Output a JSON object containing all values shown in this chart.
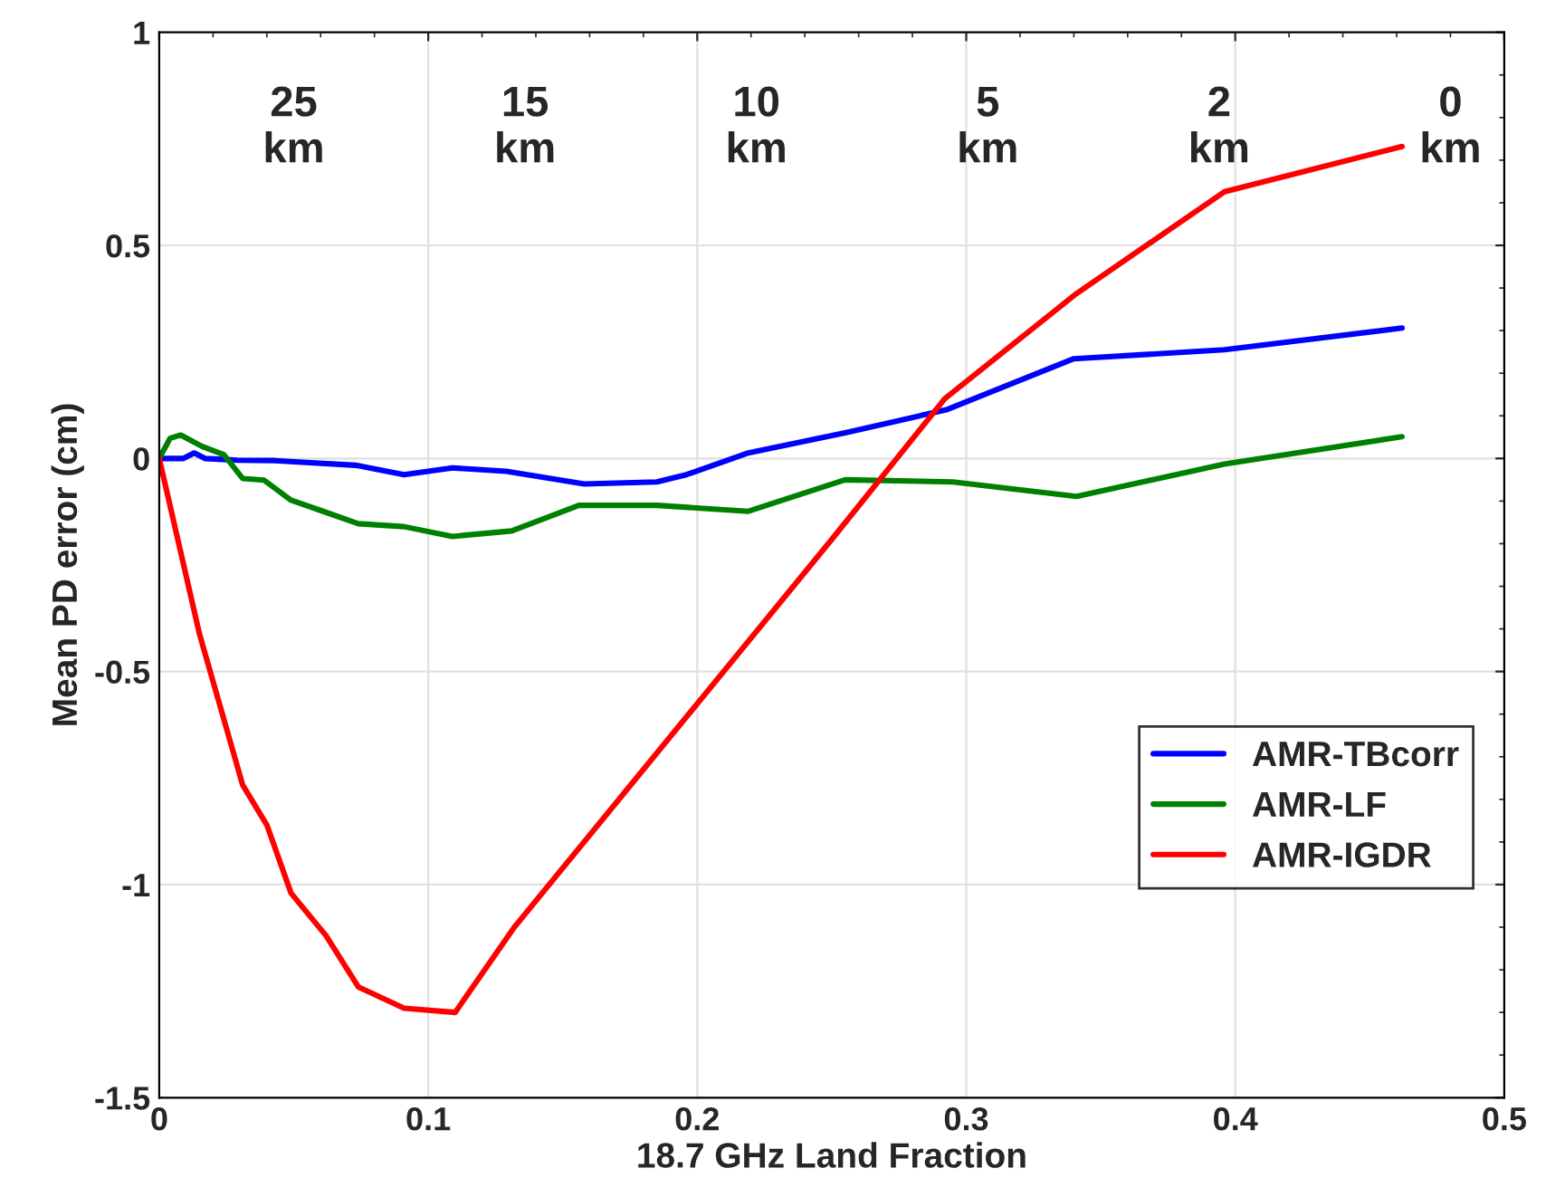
{
  "chart_data": {
    "type": "line",
    "xlabel": "18.7 GHz Land Fraction",
    "ylabel": "Mean PD error (cm)",
    "xlim": [
      0,
      0.5
    ],
    "ylim": [
      -1.5,
      1
    ],
    "xticks": [
      0,
      0.1,
      0.2,
      0.3,
      0.4,
      0.5
    ],
    "yticks": [
      -1.5,
      -1,
      -0.5,
      0,
      0.5,
      1
    ],
    "grid": true,
    "legend": "bottom right",
    "line_style": "solid",
    "series": [
      {
        "name": "AMR-TBcorr",
        "color": "#0000ff",
        "x": [
          0,
          0.009,
          0.013,
          0.017,
          0.029,
          0.043,
          0.073,
          0.091,
          0.109,
          0.129,
          0.158,
          0.185,
          0.196,
          0.219,
          0.255,
          0.293,
          0.34,
          0.396,
          0.462
        ],
        "values": [
          0,
          0,
          0.013,
          0,
          -0.004,
          -0.005,
          -0.016,
          -0.038,
          -0.022,
          -0.03,
          -0.06,
          -0.055,
          -0.038,
          0.013,
          0.06,
          0.115,
          0.234,
          0.255,
          0.306
        ]
      },
      {
        "name": "AMR-LF",
        "color": "#008000",
        "x": [
          0,
          0.004,
          0.008,
          0.016,
          0.024,
          0.031,
          0.039,
          0.049,
          0.06,
          0.074,
          0.091,
          0.109,
          0.131,
          0.156,
          0.185,
          0.219,
          0.255,
          0.295,
          0.341,
          0.396,
          0.462
        ],
        "values": [
          0,
          0.047,
          0.055,
          0.028,
          0.009,
          -0.047,
          -0.051,
          -0.098,
          -0.122,
          -0.153,
          -0.16,
          -0.183,
          -0.17,
          -0.11,
          -0.11,
          -0.124,
          -0.05,
          -0.055,
          -0.089,
          -0.013,
          0.051
        ]
      },
      {
        "name": "AMR-IGDR",
        "color": "#ff0000",
        "x": [
          0,
          0.015,
          0.031,
          0.04,
          0.049,
          0.062,
          0.074,
          0.091,
          0.11,
          0.132,
          0.25,
          0.292,
          0.341,
          0.396,
          0.462
        ],
        "values": [
          0,
          -0.413,
          -0.766,
          -0.86,
          -1.02,
          -1.12,
          -1.24,
          -1.29,
          -1.3,
          -1.1,
          -0.19,
          0.14,
          0.387,
          0.626,
          0.732
        ]
      }
    ],
    "annotations": [
      "25\nkm",
      "15\nkm",
      "10\nkm",
      "5\nkm",
      "2\nkm",
      "0\nkm"
    ]
  }
}
